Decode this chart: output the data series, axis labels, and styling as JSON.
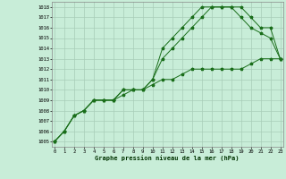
{
  "x": [
    0,
    1,
    2,
    3,
    4,
    5,
    6,
    7,
    8,
    9,
    10,
    11,
    12,
    13,
    14,
    15,
    16,
    17,
    18,
    19,
    20,
    21,
    22,
    23
  ],
  "line1": [
    1005,
    1006,
    1007.5,
    1008,
    1009,
    1009,
    1009,
    1009.5,
    1010,
    1010,
    1010.5,
    1011,
    1011,
    1011.5,
    1012,
    1012,
    1012,
    1012,
    1012,
    1012,
    1012.5,
    1013,
    1013,
    1013
  ],
  "line2": [
    1005,
    1006,
    1007.5,
    1008,
    1009,
    1009,
    1009,
    1010,
    1010,
    1010,
    1011,
    1013,
    1014,
    1015,
    1016,
    1017,
    1018,
    1018,
    1018,
    1017,
    1016,
    1015.5,
    1015,
    1013
  ],
  "line3": [
    1005,
    1006,
    1007.5,
    1008,
    1009,
    1009,
    1009,
    1010,
    1010,
    1010,
    1011,
    1014,
    1015,
    1016,
    1017,
    1018,
    1018,
    1018,
    1018,
    1018,
    1017,
    1016,
    1016,
    1013
  ],
  "yticks": [
    1005,
    1006,
    1007,
    1008,
    1009,
    1010,
    1011,
    1012,
    1013,
    1014,
    1015,
    1016,
    1017,
    1018
  ],
  "xticks": [
    0,
    1,
    2,
    3,
    4,
    5,
    6,
    7,
    8,
    9,
    10,
    11,
    12,
    13,
    14,
    15,
    16,
    17,
    18,
    19,
    20,
    21,
    22,
    23
  ],
  "line_color": "#1a6e1a",
  "bg_color": "#c8edd8",
  "grid_color": "#a8cdb8",
  "xlabel": "Graphe pression niveau de la mer (hPa)",
  "xlabel_color": "#003300",
  "tick_color": "#000000",
  "marker": "*"
}
